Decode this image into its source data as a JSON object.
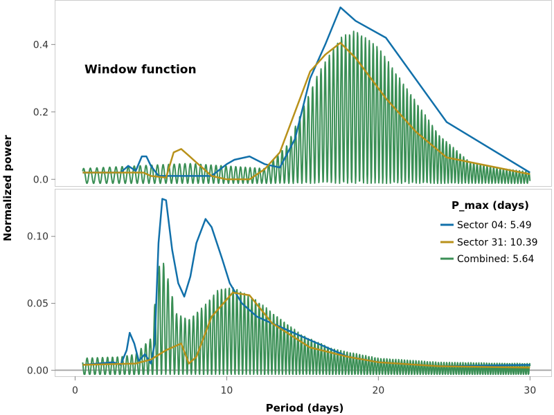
{
  "chart_data": [
    {
      "type": "line",
      "panel": "top",
      "annotation": "Window function",
      "ylim": [
        -0.02,
        0.53
      ],
      "xlim": [
        -1.3,
        31.4
      ],
      "yticks": [
        "0.0",
        "0.2",
        "0.4"
      ],
      "ytick_values": [
        0.0,
        0.2,
        0.4
      ],
      "xticks": [],
      "series": [
        {
          "name": "Sector 04",
          "color": "#1170aa",
          "x": [
            0.5,
            3.0,
            3.5,
            4.0,
            4.4,
            4.7,
            5.0,
            5.5,
            6.0,
            7.0,
            8.0,
            9.0,
            10.0,
            10.5,
            11.5,
            12.5,
            13.5,
            14.5,
            15.5,
            16.5,
            17.5,
            18.5,
            20.5,
            24.5,
            30.0
          ],
          "y": [
            0.02,
            0.02,
            0.04,
            0.025,
            0.068,
            0.068,
            0.04,
            0.01,
            0.01,
            0.01,
            0.01,
            0.01,
            0.045,
            0.058,
            0.068,
            0.045,
            0.035,
            0.12,
            0.3,
            0.4,
            0.51,
            0.47,
            0.42,
            0.17,
            0.02
          ]
        },
        {
          "name": "Sector 31",
          "color": "#b8911a",
          "x": [
            0.5,
            4.5,
            5.0,
            6.0,
            6.5,
            7.0,
            7.5,
            8.0,
            8.5,
            9.0,
            10.0,
            11.5,
            12.5,
            13.5,
            14.5,
            15.5,
            16.5,
            17.5,
            18.5,
            20.5,
            22.5,
            24.5,
            30.0
          ],
          "y": [
            0.02,
            0.02,
            0.01,
            0.005,
            0.08,
            0.09,
            0.07,
            0.05,
            0.03,
            0.01,
            0.0,
            0.0,
            0.03,
            0.08,
            0.2,
            0.32,
            0.37,
            0.405,
            0.36,
            0.24,
            0.14,
            0.065,
            0.015
          ]
        },
        {
          "name": "Combined",
          "color": "#3a8f55",
          "x": [
            0.5,
            5.0,
            7.5,
            12.5,
            14.0,
            16.0,
            17.5,
            18.5,
            20.0,
            22.0,
            24.0,
            26.0,
            28.0,
            30.0
          ],
          "y": [
            0.02,
            0.03,
            0.035,
            0.02,
            0.09,
            0.3,
            0.41,
            0.43,
            0.38,
            0.25,
            0.12,
            0.04,
            0.02,
            0.01
          ],
          "oscillating": true
        }
      ]
    },
    {
      "type": "line",
      "panel": "bottom",
      "xlabel": "Period (days)",
      "ylabel": "Normalized power",
      "ylim": [
        -0.0045,
        0.135
      ],
      "xlim": [
        -1.3,
        31.4
      ],
      "yticks": [
        "0.00",
        "0.05",
        "0.10"
      ],
      "ytick_values": [
        0.0,
        0.05,
        0.1
      ],
      "xticks": [
        "0",
        "10",
        "20",
        "30"
      ],
      "xtick_values": [
        0,
        10,
        20,
        30
      ],
      "hline": 0.0,
      "legend": {
        "title": "P_max (days)",
        "placement": "top-right",
        "entries": [
          "Sector 04: 5.49",
          "Sector 31: 10.39",
          "Combined: 5.64"
        ]
      },
      "series": [
        {
          "name": "Sector 04",
          "color": "#1170aa",
          "x": [
            0.5,
            2.5,
            3.0,
            3.4,
            3.6,
            3.9,
            4.2,
            4.6,
            5.0,
            5.25,
            5.5,
            5.75,
            6.0,
            6.4,
            6.8,
            7.2,
            7.6,
            8.0,
            8.6,
            9.0,
            9.7,
            10.2,
            11.0,
            12.0,
            14.0,
            16.0,
            18.0,
            20.0,
            24.0,
            30.0
          ],
          "y": [
            0.004,
            0.006,
            0.004,
            0.015,
            0.028,
            0.02,
            0.007,
            0.012,
            0.005,
            0.02,
            0.095,
            0.128,
            0.127,
            0.09,
            0.065,
            0.055,
            0.07,
            0.095,
            0.113,
            0.107,
            0.083,
            0.065,
            0.05,
            0.04,
            0.03,
            0.02,
            0.01,
            0.006,
            0.003,
            0.004
          ]
        },
        {
          "name": "Sector 31",
          "color": "#b8911a",
          "x": [
            0.5,
            4.0,
            5.0,
            6.0,
            7.0,
            7.5,
            8.0,
            9.0,
            10.4,
            11.5,
            13.0,
            15.5,
            18.0,
            20.0,
            24.0,
            30.0
          ],
          "y": [
            0.004,
            0.005,
            0.008,
            0.015,
            0.02,
            0.005,
            0.01,
            0.04,
            0.058,
            0.056,
            0.035,
            0.017,
            0.01,
            0.006,
            0.003,
            0.002
          ]
        },
        {
          "name": "Combined",
          "color": "#3a8f55",
          "x": [
            0.5,
            3.0,
            4.0,
            5.0,
            5.64,
            6.0,
            6.7,
            7.5,
            8.5,
            9.5,
            10.5,
            12.0,
            13.5,
            15.0,
            17.0,
            20.0,
            24.0,
            30.0
          ],
          "y": [
            0.005,
            0.006,
            0.008,
            0.02,
            0.083,
            0.07,
            0.038,
            0.034,
            0.044,
            0.057,
            0.058,
            0.048,
            0.035,
            0.022,
            0.012,
            0.005,
            0.002,
            0.001
          ],
          "oscillating": true
        }
      ]
    }
  ]
}
